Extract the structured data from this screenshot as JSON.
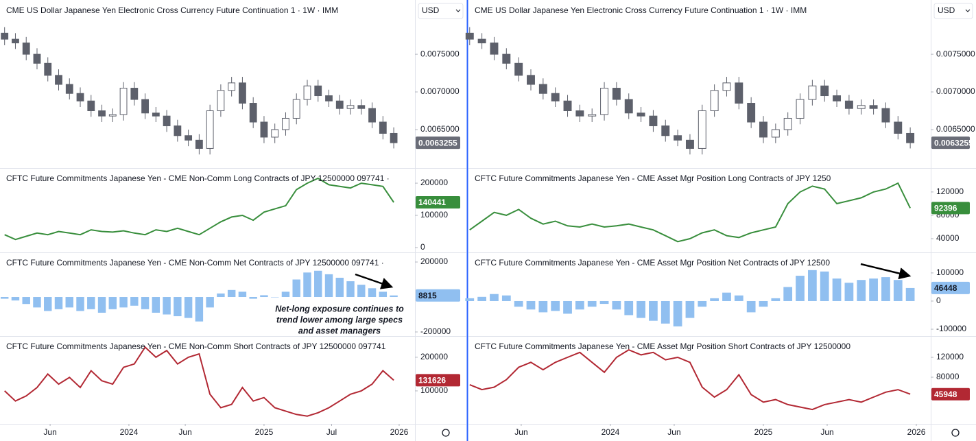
{
  "chart_data": [
    {
      "currency": "USD",
      "x": [
        2023.08,
        2023.16,
        2023.24,
        2023.32,
        2023.4,
        2023.48,
        2023.56,
        2023.64,
        2023.72,
        2023.8,
        2023.88,
        2023.96,
        2024.04,
        2024.12,
        2024.2,
        2024.28,
        2024.36,
        2024.44,
        2024.52,
        2024.6,
        2024.68,
        2024.76,
        2024.84,
        2024.92,
        2025.0,
        2025.08,
        2025.16,
        2025.24,
        2025.32,
        2025.4,
        2025.48,
        2025.56,
        2025.64,
        2025.72,
        2025.8,
        2025.88,
        2025.96
      ],
      "xlim": [
        2023.046,
        2026.117
      ],
      "xticks": [
        {
          "value": 2023.417,
          "label": "Jun"
        },
        {
          "value": 2024,
          "label": "2024"
        },
        {
          "value": 2024.417,
          "label": "Jun"
        },
        {
          "value": 2025,
          "label": "2025"
        },
        {
          "value": 2025.5,
          "label": "Jul"
        },
        {
          "value": 2026,
          "label": "2026"
        }
      ],
      "panes": [
        {
          "type": "candlestick",
          "title": "CME US Dollar Japanese Yen Electronic Cross Currency Future Continuation 1 · 1W · IMM",
          "color": "#5d606b",
          "open": [
            0.00778,
            0.0077,
            0.00765,
            0.0075,
            0.00738,
            0.00722,
            0.0071,
            0.00698,
            0.00688,
            0.00675,
            0.00668,
            0.0067,
            0.00705,
            0.0069,
            0.00672,
            0.00668,
            0.00655,
            0.00642,
            0.00636,
            0.00625,
            0.00675,
            0.00702,
            0.00712,
            0.00685,
            0.0066,
            0.0064,
            0.0065,
            0.00665,
            0.0069,
            0.00708,
            0.00695,
            0.00688,
            0.00678,
            0.00682,
            0.00678,
            0.0066,
            0.00645
          ],
          "high": [
            0.00786,
            0.00778,
            0.00773,
            0.00758,
            0.00746,
            0.0073,
            0.00718,
            0.00706,
            0.00696,
            0.00683,
            0.00678,
            0.00713,
            0.00713,
            0.00698,
            0.0068,
            0.00676,
            0.00663,
            0.0065,
            0.00644,
            0.00683,
            0.0071,
            0.0072,
            0.0072,
            0.00693,
            0.00668,
            0.00658,
            0.00673,
            0.00698,
            0.00716,
            0.00716,
            0.00703,
            0.00696,
            0.0069,
            0.0069,
            0.00686,
            0.00668,
            0.00653
          ],
          "low": [
            0.00762,
            0.00757,
            0.00742,
            0.0073,
            0.00714,
            0.00702,
            0.0069,
            0.0068,
            0.00667,
            0.0066,
            0.0066,
            0.00662,
            0.00682,
            0.00664,
            0.0066,
            0.00647,
            0.00634,
            0.00628,
            0.00617,
            0.00617,
            0.00667,
            0.00694,
            0.00677,
            0.00652,
            0.00632,
            0.00632,
            0.00642,
            0.00657,
            0.00682,
            0.00687,
            0.0068,
            0.0067,
            0.0067,
            0.0067,
            0.00652,
            0.00637,
            0.00625
          ],
          "close": [
            0.0077,
            0.00765,
            0.0075,
            0.00738,
            0.00722,
            0.0071,
            0.00698,
            0.00688,
            0.00675,
            0.00668,
            0.0067,
            0.00705,
            0.0069,
            0.00672,
            0.00668,
            0.00655,
            0.00642,
            0.00636,
            0.00625,
            0.00675,
            0.00702,
            0.00712,
            0.00685,
            0.0066,
            0.0064,
            0.0065,
            0.00665,
            0.0069,
            0.00708,
            0.00695,
            0.00688,
            0.00678,
            0.00682,
            0.00678,
            0.0066,
            0.00645,
            0.0063255
          ],
          "ylim": [
            0.00599,
            0.00822
          ],
          "yticks": [
            {
              "value": 0.0065,
              "label": "0.0065000"
            },
            {
              "value": 0.007,
              "label": "0.0070000"
            },
            {
              "value": 0.0075,
              "label": "0.0075000"
            }
          ]
        },
        {
          "type": "line",
          "title": "CFTC Future Commitments Japanese Yen - CME Non-Comm Long Contracts of JPY 12500000 097741 ·",
          "color": "#388e3c",
          "values": [
            40000,
            25000,
            35000,
            45000,
            40000,
            50000,
            45000,
            40000,
            55000,
            50000,
            48000,
            52000,
            45000,
            40000,
            55000,
            50000,
            60000,
            50000,
            40000,
            60000,
            80000,
            95000,
            100000,
            85000,
            110000,
            120000,
            130000,
            180000,
            200000,
            215000,
            195000,
            190000,
            185000,
            200000,
            195000,
            190000,
            140441
          ],
          "ylim": [
            -15000,
            247000
          ],
          "yticks": [
            0,
            100000,
            200000
          ]
        },
        {
          "type": "bar",
          "title": "CFTC Future Commitments Japanese Yen - CME Non-Comm Net Contracts of JPY 12500000 097741 ·",
          "color": "#90bff0",
          "values": [
            -10000,
            -20000,
            -40000,
            -60000,
            -80000,
            -70000,
            -60000,
            -80000,
            -70000,
            -90000,
            -70000,
            -60000,
            -50000,
            -70000,
            -90000,
            -100000,
            -110000,
            -120000,
            -140000,
            -60000,
            20000,
            40000,
            30000,
            -10000,
            10000,
            0,
            30000,
            100000,
            140000,
            150000,
            130000,
            110000,
            90000,
            70000,
            50000,
            30000,
            8815
          ],
          "ylim": [
            -223500,
            255000
          ],
          "yticks": [
            -200000,
            200000
          ],
          "annotation": [
            "Net-long exposure continues to",
            "trend lower among large specs",
            "and asset managers"
          ]
        },
        {
          "type": "line",
          "title": "CFTC Future Commitments Japanese Yen - CME Non-Comm Short Contracts of JPY 12500000 097741",
          "color": "#b22833",
          "values": [
            100000,
            70000,
            85000,
            110000,
            150000,
            120000,
            140000,
            110000,
            160000,
            130000,
            120000,
            170000,
            180000,
            230000,
            200000,
            220000,
            180000,
            200000,
            210000,
            90000,
            50000,
            60000,
            110000,
            70000,
            80000,
            50000,
            40000,
            30000,
            25000,
            35000,
            50000,
            70000,
            90000,
            100000,
            120000,
            160000,
            131626
          ],
          "ylim": [
            2000,
            263000
          ],
          "yticks": [
            100000,
            200000
          ]
        }
      ]
    },
    {
      "currency": "USD",
      "x": [
        2023.08,
        2023.16,
        2023.24,
        2023.32,
        2023.4,
        2023.48,
        2023.56,
        2023.64,
        2023.72,
        2023.8,
        2023.88,
        2023.96,
        2024.04,
        2024.12,
        2024.2,
        2024.28,
        2024.36,
        2024.44,
        2024.52,
        2024.6,
        2024.68,
        2024.76,
        2024.84,
        2024.92,
        2025.0,
        2025.08,
        2025.16,
        2025.24,
        2025.32,
        2025.4,
        2025.48,
        2025.56,
        2025.64,
        2025.72,
        2025.8,
        2025.88,
        2025.96
      ],
      "xlim": [
        2023.072,
        2026.094
      ],
      "xticks": [
        {
          "value": 2023.417,
          "label": "Jun"
        },
        {
          "value": 2024,
          "label": "2024"
        },
        {
          "value": 2024.417,
          "label": "Jun"
        },
        {
          "value": 2025,
          "label": "2025"
        },
        {
          "value": 2025.417,
          "label": "Jun"
        },
        {
          "value": 2026,
          "label": "2026"
        }
      ],
      "panes": [
        {
          "type": "candlestick",
          "title": "CME US Dollar Japanese Yen Electronic Cross Currency Future Continuation 1 · 1W · IMM",
          "color": "#5d606b",
          "open": [
            0.00778,
            0.0077,
            0.00765,
            0.0075,
            0.00738,
            0.00722,
            0.0071,
            0.00698,
            0.00688,
            0.00675,
            0.00668,
            0.0067,
            0.00705,
            0.0069,
            0.00672,
            0.00668,
            0.00655,
            0.00642,
            0.00636,
            0.00625,
            0.00675,
            0.00702,
            0.00712,
            0.00685,
            0.0066,
            0.0064,
            0.0065,
            0.00665,
            0.0069,
            0.00708,
            0.00695,
            0.00688,
            0.00678,
            0.00682,
            0.00678,
            0.0066,
            0.00645
          ],
          "high": [
            0.00786,
            0.00778,
            0.00773,
            0.00758,
            0.00746,
            0.0073,
            0.00718,
            0.00706,
            0.00696,
            0.00683,
            0.00678,
            0.00713,
            0.00713,
            0.00698,
            0.0068,
            0.00676,
            0.00663,
            0.0065,
            0.00644,
            0.00683,
            0.0071,
            0.0072,
            0.0072,
            0.00693,
            0.00668,
            0.00658,
            0.00673,
            0.00698,
            0.00716,
            0.00716,
            0.00703,
            0.00696,
            0.0069,
            0.0069,
            0.00686,
            0.00668,
            0.00653
          ],
          "low": [
            0.00762,
            0.00757,
            0.00742,
            0.0073,
            0.00714,
            0.00702,
            0.0069,
            0.0068,
            0.00667,
            0.0066,
            0.0066,
            0.00662,
            0.00682,
            0.00664,
            0.0066,
            0.00647,
            0.00634,
            0.00628,
            0.00617,
            0.00617,
            0.00667,
            0.00694,
            0.00677,
            0.00652,
            0.00632,
            0.00632,
            0.00642,
            0.00657,
            0.00682,
            0.00687,
            0.0068,
            0.0067,
            0.0067,
            0.0067,
            0.00652,
            0.00637,
            0.00625
          ],
          "close": [
            0.0077,
            0.00765,
            0.0075,
            0.00738,
            0.00722,
            0.0071,
            0.00698,
            0.00688,
            0.00675,
            0.00668,
            0.0067,
            0.00705,
            0.0069,
            0.00672,
            0.00668,
            0.00655,
            0.00642,
            0.00636,
            0.00625,
            0.00675,
            0.00702,
            0.00712,
            0.00685,
            0.0066,
            0.0064,
            0.0065,
            0.00665,
            0.0069,
            0.00708,
            0.00695,
            0.00688,
            0.00678,
            0.00682,
            0.00678,
            0.0066,
            0.00645,
            0.0063255
          ],
          "ylim": [
            0.00599,
            0.00822
          ],
          "yticks": [
            {
              "value": 0.0065,
              "label": "0.0065000"
            },
            {
              "value": 0.007,
              "label": "0.0070000"
            },
            {
              "value": 0.0075,
              "label": "0.0075000"
            }
          ]
        },
        {
          "type": "line",
          "title": "CFTC Future Commitments Japanese Yen - CME Asset Mgr Position Long Contracts of JPY 1250",
          "color": "#388e3c",
          "values": [
            55000,
            70000,
            85000,
            80000,
            90000,
            75000,
            65000,
            70000,
            62000,
            60000,
            65000,
            60000,
            62000,
            65000,
            60000,
            55000,
            45000,
            35000,
            40000,
            50000,
            55000,
            45000,
            42000,
            50000,
            55000,
            60000,
            100000,
            120000,
            130000,
            125000,
            100000,
            105000,
            110000,
            120000,
            125000,
            135000,
            92396
          ],
          "ylim": [
            16500,
            161000
          ],
          "yticks": [
            40000,
            80000,
            120000
          ]
        },
        {
          "type": "bar",
          "title": "CFTC Future Commitments Japanese Yen - CME Asset Mgr Position Net Contracts of JPY 12500",
          "color": "#90bff0",
          "values": [
            10000,
            15000,
            25000,
            20000,
            -20000,
            -30000,
            -40000,
            -35000,
            -45000,
            -30000,
            -20000,
            -10000,
            -30000,
            -50000,
            -60000,
            -70000,
            -80000,
            -90000,
            -60000,
            -20000,
            10000,
            30000,
            20000,
            -40000,
            -20000,
            10000,
            50000,
            90000,
            110000,
            105000,
            80000,
            65000,
            75000,
            80000,
            85000,
            75000,
            46448
          ],
          "ylim": [
            -124400,
            173000
          ],
          "yticks": [
            -100000,
            0,
            100000
          ]
        },
        {
          "type": "line",
          "title": "CFTC Future Commitments Japanese Yen - CME Asset Mgr Position Short Contracts of JPY 12500000",
          "color": "#b22833",
          "values": [
            65000,
            55000,
            60000,
            75000,
            100000,
            110000,
            95000,
            110000,
            120000,
            130000,
            110000,
            90000,
            120000,
            135000,
            125000,
            130000,
            115000,
            120000,
            110000,
            60000,
            40000,
            55000,
            85000,
            45000,
            30000,
            35000,
            25000,
            20000,
            15000,
            25000,
            30000,
            35000,
            30000,
            40000,
            50000,
            55000,
            45948
          ],
          "ylim": [
            -13800,
            162800
          ],
          "yticks": [
            80000,
            120000
          ]
        }
      ]
    }
  ]
}
